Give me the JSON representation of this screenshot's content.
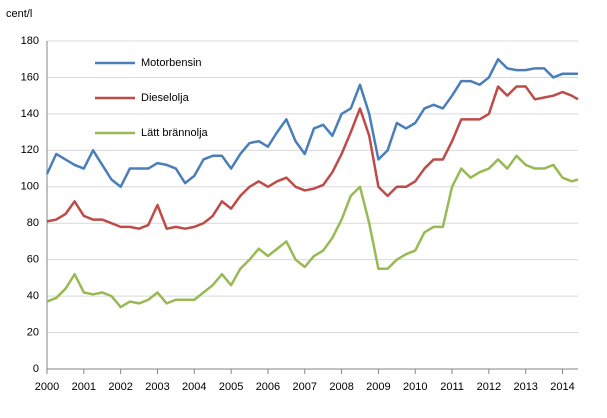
{
  "chart_data": {
    "type": "line",
    "y_label": "cent/l",
    "x": [
      2000,
      2000.25,
      2000.5,
      2000.75,
      2001,
      2001.25,
      2001.5,
      2001.75,
      2002,
      2002.25,
      2002.5,
      2002.75,
      2003,
      2003.25,
      2003.5,
      2003.75,
      2004,
      2004.25,
      2004.5,
      2004.75,
      2005,
      2005.25,
      2005.5,
      2005.75,
      2006,
      2006.25,
      2006.5,
      2006.75,
      2007,
      2007.25,
      2007.5,
      2007.75,
      2008,
      2008.25,
      2008.5,
      2008.75,
      2009,
      2009.25,
      2009.5,
      2009.75,
      2010,
      2010.25,
      2010.5,
      2010.75,
      2011,
      2011.25,
      2011.5,
      2011.75,
      2012,
      2012.25,
      2012.5,
      2012.75,
      2013,
      2013.25,
      2013.5,
      2013.75,
      2014,
      2014.25,
      2014.42
    ],
    "series": [
      {
        "name": "Motorbensin",
        "color": "#4a7ebb",
        "values": [
          107,
          118,
          115,
          112,
          110,
          120,
          112,
          104,
          100,
          110,
          110,
          110,
          113,
          112,
          110,
          102,
          106,
          115,
          117,
          117,
          110,
          118,
          124,
          125,
          122,
          130,
          137,
          125,
          118,
          132,
          134,
          128,
          140,
          143,
          156,
          140,
          115,
          120,
          135,
          132,
          135,
          143,
          145,
          143,
          150,
          158,
          158,
          156,
          160,
          170,
          165,
          164,
          164,
          165,
          165,
          160,
          162,
          162,
          162
        ]
      },
      {
        "name": "Dieselolja",
        "color": "#be4b48",
        "values": [
          81,
          82,
          85,
          92,
          84,
          82,
          82,
          80,
          78,
          78,
          77,
          79,
          90,
          77,
          78,
          77,
          78,
          80,
          84,
          92,
          88,
          95,
          100,
          103,
          100,
          103,
          105,
          100,
          98,
          99,
          101,
          108,
          118,
          130,
          143,
          128,
          100,
          95,
          100,
          100,
          103,
          110,
          115,
          115,
          125,
          137,
          137,
          137,
          140,
          155,
          150,
          155,
          155,
          148,
          149,
          150,
          152,
          150,
          148
        ]
      },
      {
        "name": "Lätt brännolja",
        "color": "#98b954",
        "values": [
          37,
          39,
          44,
          52,
          42,
          41,
          42,
          40,
          34,
          37,
          36,
          38,
          42,
          36,
          38,
          38,
          38,
          42,
          46,
          52,
          46,
          55,
          60,
          66,
          62,
          66,
          70,
          60,
          56,
          62,
          65,
          72,
          82,
          95,
          100,
          80,
          55,
          55,
          60,
          63,
          65,
          75,
          78,
          78,
          100,
          110,
          105,
          108,
          110,
          115,
          110,
          117,
          112,
          110,
          110,
          112,
          105,
          103,
          104
        ]
      }
    ],
    "xlim": [
      2000,
      2014.42
    ],
    "xticks": [
      2000,
      2001,
      2002,
      2003,
      2004,
      2005,
      2006,
      2007,
      2008,
      2009,
      2010,
      2011,
      2012,
      2013,
      2014
    ],
    "ylim": [
      0,
      180
    ],
    "yticks": [
      0,
      20,
      40,
      60,
      80,
      100,
      120,
      140,
      160,
      180
    ],
    "grid": true,
    "legend": "upper-left"
  }
}
